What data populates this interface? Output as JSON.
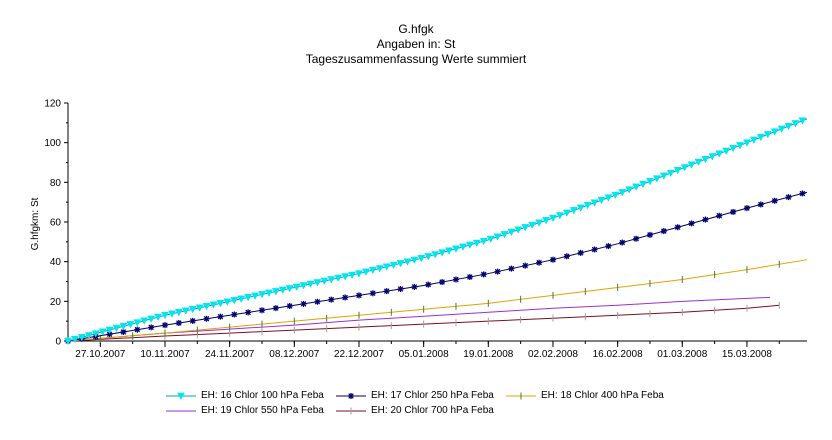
{
  "chart_data": {
    "type": "line",
    "title": "G.hfgk",
    "subtitle_lines": [
      "Angaben in: St",
      "Tageszusammenfassung Werte summiert"
    ],
    "ylabel": "G.hfgkm: St",
    "xlabel": "",
    "ylim": [
      0,
      120
    ],
    "yticks": [
      0,
      20,
      40,
      60,
      80,
      100,
      120
    ],
    "x_range": [
      "2007-10-20",
      "2008-03-28"
    ],
    "xtick_labels": [
      "27.10.2007",
      "10.11.2007",
      "24.11.2007",
      "08.12.2007",
      "22.12.2007",
      "05.01.2008",
      "19.01.2008",
      "02.02.2008",
      "16.02.2008",
      "01.03.2008",
      "15.03.2008"
    ],
    "xtick_dates": [
      "2007-10-27",
      "2007-11-10",
      "2007-11-24",
      "2007-12-08",
      "2007-12-22",
      "2008-01-05",
      "2008-01-19",
      "2008-02-02",
      "2008-02-16",
      "2008-03-01",
      "2008-03-15"
    ],
    "grid": false,
    "legend_position": "bottom",
    "series": [
      {
        "name": "EH: 16 Chlor 100 hPa Feba",
        "color": "#00e5ee",
        "line_color": "#00a6b0",
        "marker": "triangle-down",
        "x": [
          "2007-10-20",
          "2007-11-10",
          "2007-11-24",
          "2007-12-08",
          "2007-12-22",
          "2008-01-05",
          "2008-01-19",
          "2008-02-02",
          "2008-02-16",
          "2008-03-01",
          "2008-03-15",
          "2008-03-28"
        ],
        "y": [
          0,
          13,
          20,
          27,
          34,
          42,
          51,
          62,
          74,
          87,
          100,
          112
        ]
      },
      {
        "name": "EH: 17 Chlor 250 hPa Feba",
        "color": "#00006e",
        "line_color": "#00006e",
        "marker": "star",
        "x": [
          "2007-10-20",
          "2007-11-10",
          "2007-11-24",
          "2007-12-08",
          "2007-12-22",
          "2008-01-05",
          "2008-01-19",
          "2008-02-02",
          "2008-02-16",
          "2008-03-01",
          "2008-03-15",
          "2008-03-28"
        ],
        "y": [
          0,
          8,
          13,
          18,
          23,
          28,
          34,
          41,
          49,
          58,
          67,
          75
        ]
      },
      {
        "name": "EH: 18 Chlor 400 hPa Feba",
        "color": "#e8a000",
        "line_color": "#e8a000",
        "marker_color": "#2e8b2e",
        "marker": "vbar",
        "x": [
          "2007-10-20",
          "2007-11-10",
          "2007-11-24",
          "2007-12-08",
          "2007-12-22",
          "2008-01-05",
          "2008-01-19",
          "2008-02-02",
          "2008-02-16",
          "2008-03-01",
          "2008-03-15",
          "2008-03-28"
        ],
        "y": [
          0,
          4,
          7,
          10,
          13,
          16,
          19,
          23,
          27,
          31,
          36,
          41
        ]
      },
      {
        "name": "EH: 19 Chlor 550 hPa Feba",
        "color": "#9b30d0",
        "line_color": "#9b30d0",
        "marker": "none",
        "x": [
          "2007-10-20",
          "2007-11-10",
          "2007-11-24",
          "2007-12-08",
          "2007-12-22",
          "2008-01-05",
          "2008-01-19",
          "2008-02-02",
          "2008-02-16",
          "2008-03-01",
          "2008-03-15",
          "2008-03-20"
        ],
        "y": [
          0,
          4,
          6,
          8,
          10.5,
          12.5,
          14.5,
          16.5,
          18,
          20,
          21.5,
          22
        ]
      },
      {
        "name": "EH: 20 Chlor 700 hPa Feba",
        "color": "#7a1020",
        "line_color": "#7a1020",
        "marker_color": "#a0a0a0",
        "marker": "vbar",
        "x": [
          "2007-10-20",
          "2007-11-10",
          "2007-11-24",
          "2007-12-08",
          "2007-12-22",
          "2008-01-05",
          "2008-01-19",
          "2008-02-02",
          "2008-02-16",
          "2008-03-01",
          "2008-03-15",
          "2008-03-22"
        ],
        "y": [
          0,
          2.5,
          4,
          5.5,
          7,
          8.5,
          10,
          11.5,
          13,
          14.5,
          16.5,
          18
        ]
      }
    ]
  }
}
